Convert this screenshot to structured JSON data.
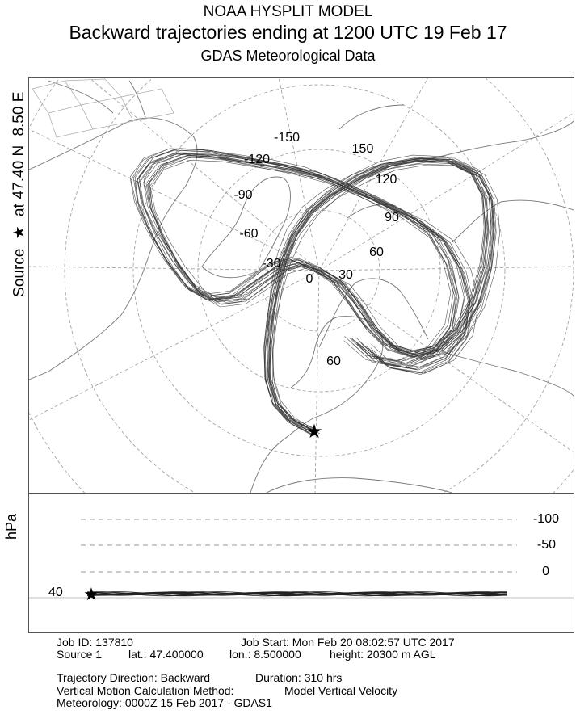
{
  "header": {
    "line1": "NOAA HYSPLIT MODEL",
    "line2": "Backward trajectories ending at 1200 UTC 19 Feb 17",
    "line3": "GDAS Meteorological Data"
  },
  "side_label": {
    "source_word": "Source",
    "star": "★",
    "at_word": "at",
    "lat": "47.40 N",
    "lon": "8.50 E"
  },
  "map": {
    "longitude_labels": [
      {
        "text": "-150"
      },
      {
        "text": "-120"
      },
      {
        "text": "-90"
      },
      {
        "text": "-60"
      },
      {
        "text": "-30"
      },
      {
        "text": "0"
      },
      {
        "text": "30"
      },
      {
        "text": "60"
      },
      {
        "text": "90"
      },
      {
        "text": "120"
      },
      {
        "text": "150"
      },
      {
        "text": "60"
      }
    ],
    "source_marker": "★",
    "source_location": {
      "lat": 47.4,
      "lon": 8.5
    }
  },
  "height_panel": {
    "axis_label": "hPa",
    "ticks": [
      "-100",
      "-50",
      "0"
    ],
    "level_label": "40"
  },
  "info": {
    "job_id": "Job ID: 137810",
    "job_start": "Job Start: Mon Feb 20 08:02:57 UTC 2017",
    "source": "Source 1",
    "lat": "lat.: 47.400000",
    "lon": "lon.: 8.500000",
    "height": "height: 20300 m AGL",
    "direction": "Trajectory Direction: Backward",
    "duration": "Duration: 310 hrs",
    "vertical_method_label": "Vertical Motion Calculation Method:",
    "vertical_method_value": "Model Vertical Velocity",
    "meteorology": "Meteorology: 0000Z 15 Feb 2017 - GDAS1"
  }
}
